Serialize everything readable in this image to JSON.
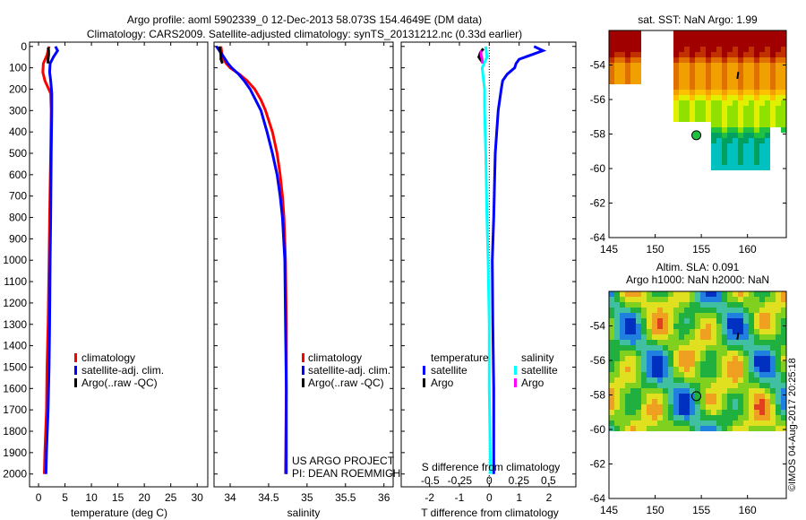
{
  "title_line1": "Argo profile: aoml 5902339_0 12-Dec-2013 58.073S 154.4649E (DM data)",
  "title_line2": "Climatology: CARS2009. Satellite-adjusted climatology: synTS_20131212.nc (0.33d earlier)",
  "credit": "©IMOS 04-Aug-2017 20:25:18",
  "project_line1": "US ARGO PROJECT",
  "project_line2": "PI: DEAN ROEMMICH",
  "colors": {
    "climatology": "#ff0000",
    "satellite": "#0000ff",
    "argo": "#000000",
    "sat_salinity": "#00ffff",
    "argo_salinity": "#ff00ff"
  },
  "chart_data": [
    {
      "type": "line",
      "xlabel": "temperature (deg C)",
      "ylabel": "depth",
      "xlim": [
        -1.7,
        32
      ],
      "ylim": [
        2060,
        -20
      ],
      "xticks": [
        "0",
        "5",
        "10",
        "15",
        "20",
        "25",
        "30"
      ],
      "yticks": [
        "0",
        "100",
        "200",
        "300",
        "400",
        "500",
        "600",
        "700",
        "800",
        "900",
        "1000",
        "1100",
        "1200",
        "1300",
        "1400",
        "1500",
        "1600",
        "1700",
        "1800",
        "1900",
        "2000"
      ],
      "legend": [
        "climatology",
        "satellite-adj. clim.",
        "Argo(..raw -QC)"
      ],
      "series": [
        {
          "name": "climatology",
          "depth": [
            0,
            40,
            80,
            120,
            160,
            220,
            300,
            500,
            800,
            1000,
            1300,
            1500,
            1700,
            1900,
            2000
          ],
          "values": [
            2.0,
            1.6,
            0.9,
            0.8,
            1.2,
            2.3,
            2.4,
            2.3,
            2.1,
            2.0,
            1.8,
            1.6,
            1.5,
            1.2,
            1.1
          ]
        },
        {
          "name": "satellite-adj. clim.",
          "depth": [
            0,
            20,
            50,
            80,
            120,
            160,
            220,
            300,
            500,
            800,
            1000,
            1300,
            1500,
            1700,
            1900,
            2000
          ],
          "values": [
            3.2,
            3.6,
            2.8,
            2.2,
            2.1,
            2.3,
            2.5,
            2.5,
            2.4,
            2.3,
            2.2,
            2.1,
            2.0,
            1.8,
            1.5,
            1.4
          ]
        },
        {
          "name": "Argo(..raw -QC)",
          "depth": [
            5,
            20,
            40,
            60,
            80
          ],
          "values": [
            1.8,
            1.9,
            1.9,
            1.8,
            1.8
          ]
        }
      ]
    },
    {
      "type": "line",
      "xlabel": "salinity",
      "xlim": [
        33.79,
        36.12
      ],
      "ylim": [
        2060,
        -20
      ],
      "xticks": [
        "34",
        "34.5",
        "35",
        "35.5",
        "36"
      ],
      "legend": [
        "climatology",
        "satellite-adj. clim.",
        "Argo(..raw -QC)"
      ],
      "series": [
        {
          "name": "climatology",
          "depth": [
            0,
            50,
            80,
            100,
            130,
            160,
            200,
            250,
            300,
            400,
            500,
            600,
            700,
            800,
            1000,
            1300,
            1600,
            2000
          ],
          "values": [
            33.88,
            33.9,
            33.95,
            34.0,
            34.12,
            34.22,
            34.32,
            34.4,
            34.46,
            34.55,
            34.61,
            34.65,
            34.68,
            34.7,
            34.72,
            34.73,
            34.73,
            34.72
          ]
        },
        {
          "name": "satellite-adj. clim.",
          "depth": [
            0,
            40,
            80,
            100,
            130,
            160,
            200,
            250,
            300,
            400,
            500,
            600,
            700,
            800,
            1000,
            1300,
            1600,
            2000
          ],
          "values": [
            33.82,
            33.9,
            33.97,
            34.02,
            34.11,
            34.18,
            34.26,
            34.33,
            34.4,
            34.48,
            34.55,
            34.61,
            34.65,
            34.68,
            34.71,
            34.72,
            34.73,
            34.73
          ]
        },
        {
          "name": "Argo(..raw -QC)",
          "depth": [
            0,
            20,
            40,
            60,
            80
          ],
          "values": [
            33.86,
            33.87,
            33.88,
            33.88,
            33.9
          ]
        }
      ]
    },
    {
      "type": "line",
      "xlabel": "T difference from climatology",
      "xlabel2": "S difference from climatology",
      "xlim": [
        -2.95,
        2.9
      ],
      "xlim2": [
        -0.5,
        0.5
      ],
      "ylim": [
        2060,
        -20
      ],
      "xticks": [
        "-2",
        "-1",
        "0",
        "1",
        "2"
      ],
      "xticks2": [
        "-0.5",
        "-0.25",
        "0",
        "0.25",
        "0.5"
      ],
      "legend_temperature_title": "temperature",
      "legend_salinity_title": "salinity",
      "legend_items": [
        "satellite",
        "Argo",
        "satellite",
        "Argo"
      ],
      "series": [
        {
          "name": "temperature satellite",
          "axis": "T",
          "depth": [
            0,
            20,
            40,
            60,
            80,
            100,
            130,
            160,
            200,
            300,
            500,
            800,
            1000,
            1300,
            1600,
            2000
          ],
          "values": [
            1.5,
            1.8,
            1.4,
            1.0,
            0.9,
            0.85,
            0.6,
            0.45,
            0.4,
            0.3,
            0.2,
            0.15,
            0.1,
            0.12,
            0.15,
            0.15
          ]
        },
        {
          "name": "temperature Argo",
          "axis": "T",
          "depth": [
            10,
            30,
            50,
            70
          ],
          "values": [
            -0.2,
            -0.3,
            -0.35,
            -0.25
          ]
        },
        {
          "name": "salinity satellite",
          "axis": "S",
          "depth": [
            0,
            50,
            100,
            150,
            200,
            300,
            500,
            800,
            1000,
            1300,
            1600,
            2000
          ],
          "values": [
            -0.03,
            -0.02,
            -0.06,
            -0.05,
            -0.04,
            -0.04,
            -0.03,
            -0.02,
            -0.01,
            0.0,
            0.0,
            0.01
          ]
        },
        {
          "name": "salinity Argo",
          "axis": "S",
          "depth": [
            20,
            40,
            60,
            80
          ],
          "values": [
            -0.07,
            -0.07,
            -0.06,
            -0.06
          ]
        }
      ]
    },
    {
      "type": "heatmap",
      "title": "sat. SST: NaN Argo: 1.99",
      "xlim": [
        145,
        164.2
      ],
      "ylim": [
        -64,
        -52
      ],
      "xticks": [
        "145",
        "150",
        "155",
        "160"
      ],
      "yticks": [
        "-54",
        "-56",
        "-58",
        "-60",
        "-62",
        "-64"
      ],
      "argo_position": [
        154.46,
        -58.07
      ]
    },
    {
      "type": "heatmap",
      "title_line1": "Altim. SLA: 0.091",
      "title_line2": "Argo h1000: NaN h2000: NaN",
      "xlim": [
        145,
        164.2
      ],
      "ylim": [
        -64,
        -52
      ],
      "xticks": [
        "145",
        "150",
        "155",
        "160"
      ],
      "yticks": [
        "-54",
        "-56",
        "-58",
        "-60",
        "-62",
        "-64"
      ],
      "argo_position": [
        154.46,
        -58.07
      ]
    }
  ]
}
